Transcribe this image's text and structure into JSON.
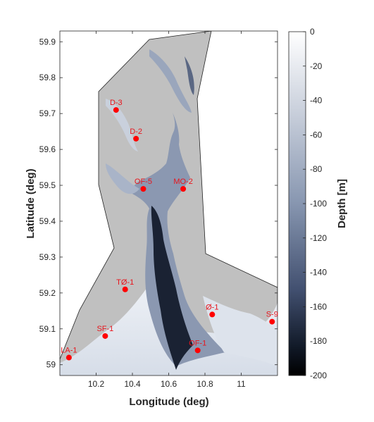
{
  "chart_data": {
    "type": "heatmap",
    "title": "",
    "xlabel": "Longitude (deg)",
    "ylabel": "Latitude (deg)",
    "xlim": [
      10.0,
      11.2
    ],
    "ylim": [
      58.97,
      59.93
    ],
    "xticks": [
      "10.2",
      "10.4",
      "10.6",
      "10.8",
      "11"
    ],
    "yticks": [
      "59",
      "59.1",
      "59.2",
      "59.3",
      "59.4",
      "59.5",
      "59.6",
      "59.7",
      "59.8",
      "59.9"
    ],
    "colorbar": {
      "label": "Depth [m]",
      "range": [
        -200,
        0
      ],
      "ticks": [
        "0",
        "-20",
        "-40",
        "-60",
        "-80",
        "-100",
        "-120",
        "-140",
        "-160",
        "-180",
        "-200"
      ]
    },
    "land_color": "#c0c0c0",
    "marker_color": "#ff0000",
    "stations": [
      {
        "name": "D-3",
        "lon": 10.31,
        "lat": 59.71
      },
      {
        "name": "D-2",
        "lon": 10.42,
        "lat": 59.63
      },
      {
        "name": "OF-5",
        "lon": 10.46,
        "lat": 59.49
      },
      {
        "name": "MO-2",
        "lon": 10.68,
        "lat": 59.49
      },
      {
        "name": "TØ-1",
        "lon": 10.36,
        "lat": 59.21
      },
      {
        "name": "Ø-1",
        "lon": 10.84,
        "lat": 59.14
      },
      {
        "name": "S-9",
        "lon": 11.17,
        "lat": 59.12
      },
      {
        "name": "SF-1",
        "lon": 10.25,
        "lat": 59.08
      },
      {
        "name": "OF-1",
        "lon": 10.76,
        "lat": 59.04
      },
      {
        "name": "LA-1",
        "lon": 10.05,
        "lat": 59.02
      }
    ]
  }
}
